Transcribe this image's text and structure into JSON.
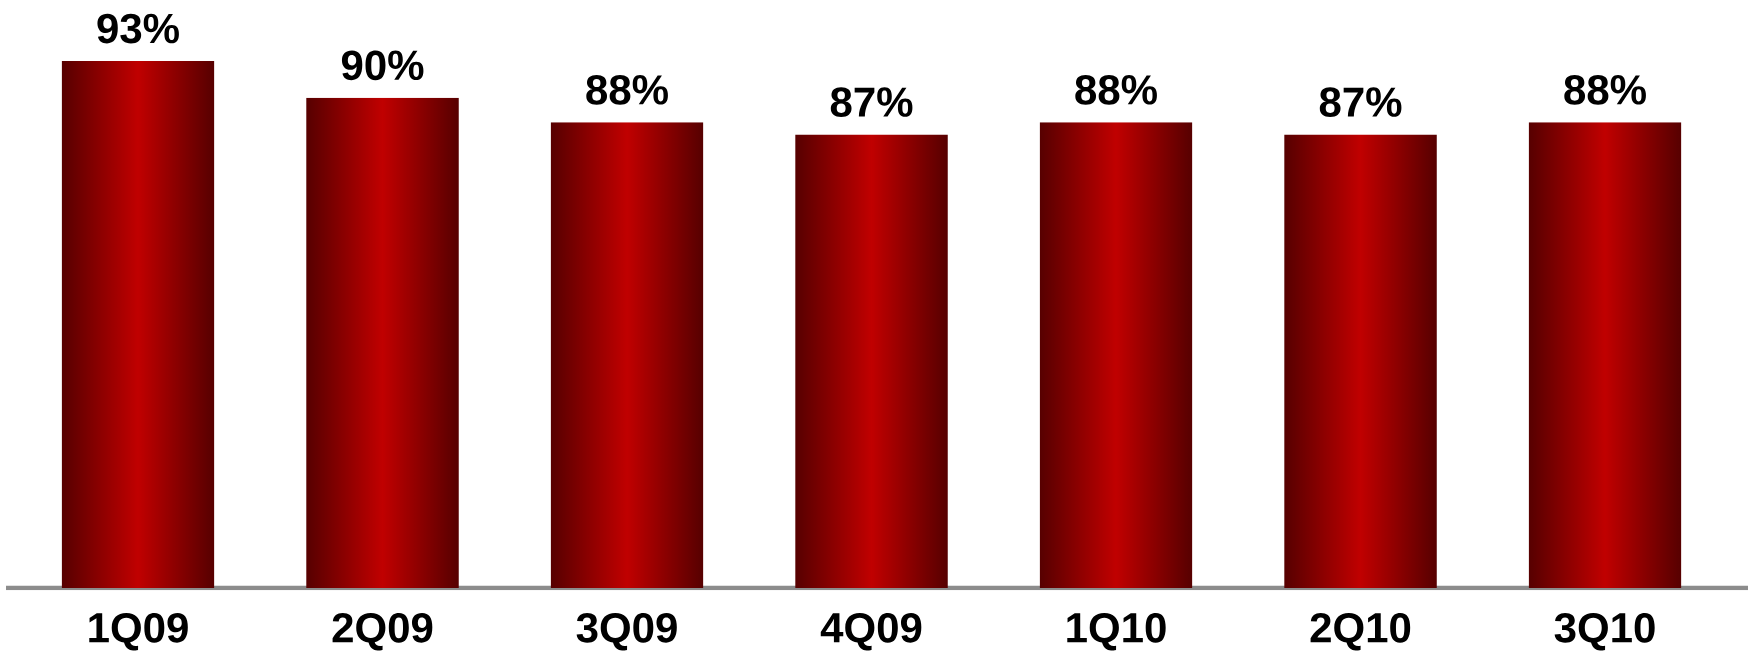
{
  "chart_data": {
    "type": "bar",
    "categories": [
      "1Q09",
      "2Q09",
      "3Q09",
      "4Q09",
      "1Q10",
      "2Q10",
      "3Q10"
    ],
    "values": [
      93,
      90,
      88,
      87,
      88,
      87,
      88
    ],
    "value_labels": [
      "93%",
      "90%",
      "88%",
      "87%",
      "88%",
      "87%",
      "88%"
    ],
    "color": "#c00000",
    "ylim": [
      50,
      93
    ]
  }
}
